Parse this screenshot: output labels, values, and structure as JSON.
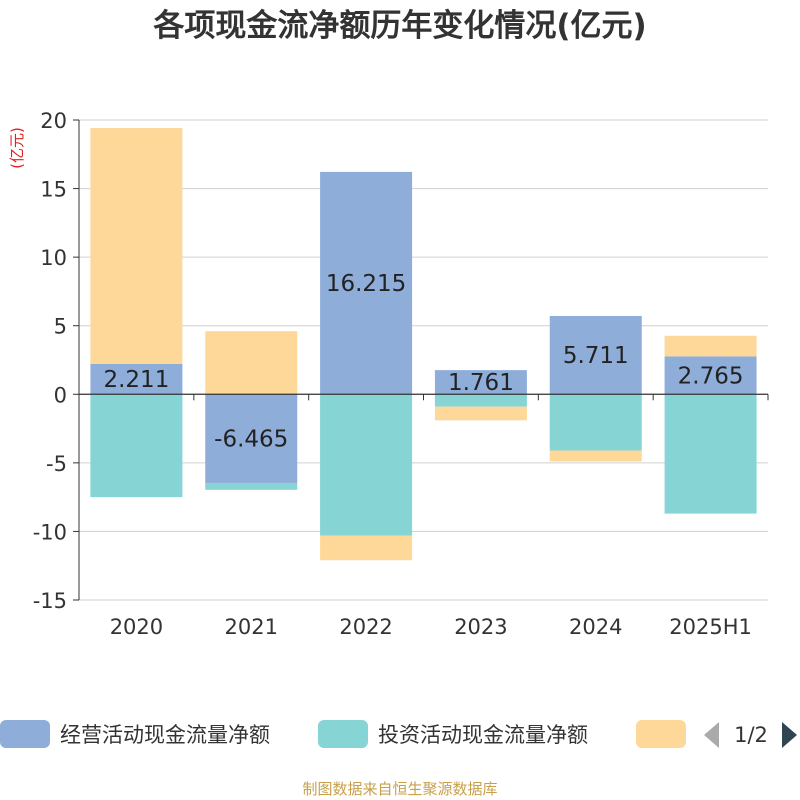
{
  "title": "各项现金流净额历年变化情况(亿元)",
  "footer": "制图数据来自恒生聚源数据库",
  "chart_data": {
    "type": "bar",
    "stacked": true,
    "y_unit_label": "(亿元)",
    "categories": [
      "2020",
      "2021",
      "2022",
      "2023",
      "2024",
      "2025H1"
    ],
    "ylim": [
      -15,
      20
    ],
    "yticks": [
      20,
      15,
      10,
      5,
      0,
      -5,
      -10,
      -15
    ],
    "grid": true,
    "series": [
      {
        "name": "经营活动现金流量净额",
        "color": "#8eadd9",
        "values": [
          2.211,
          -6.465,
          16.215,
          1.761,
          5.711,
          2.765
        ],
        "labels": [
          "2.211",
          "-6.465",
          "16.215",
          "1.761",
          "5.711",
          "2.765"
        ]
      },
      {
        "name": "投资活动现金流量净额",
        "color": "#86d4d4",
        "values": [
          -7.5,
          -0.5,
          -10.3,
          -0.9,
          -4.1,
          -8.7
        ]
      },
      {
        "name": "",
        "color": "#fdd899",
        "values": [
          17.2,
          4.6,
          -1.8,
          -1.0,
          -0.8,
          1.5
        ]
      }
    ],
    "legend": {
      "position": "bottom",
      "page": "1/2"
    }
  }
}
